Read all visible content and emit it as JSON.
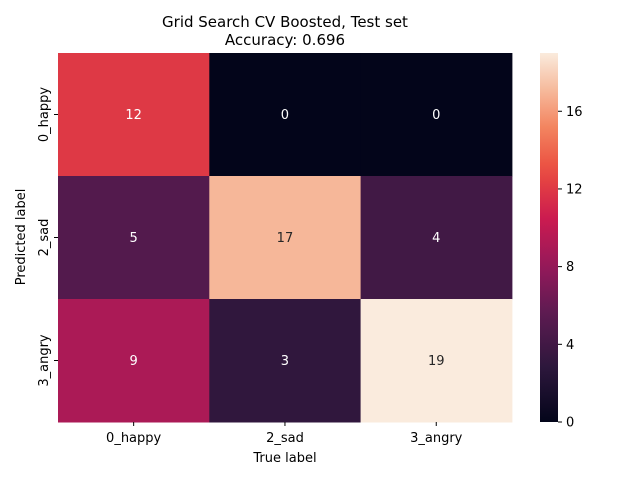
{
  "chart_data": {
    "type": "heatmap",
    "title": "Grid Search CV Boosted, Test set",
    "subtitle": "Accuracy: 0.696",
    "xlabel": "True label",
    "ylabel": "Predicted label",
    "x_categories": [
      "0_happy",
      "2_sad",
      "3_angry"
    ],
    "y_categories": [
      "0_happy",
      "2_sad",
      "3_angry"
    ],
    "values": [
      [
        12,
        0,
        0
      ],
      [
        5,
        17,
        4
      ],
      [
        9,
        3,
        19
      ]
    ],
    "colorbar": {
      "min": 0,
      "max": 19,
      "ticks": [
        0,
        4,
        8,
        12,
        16
      ]
    },
    "colormap": "rocket"
  }
}
